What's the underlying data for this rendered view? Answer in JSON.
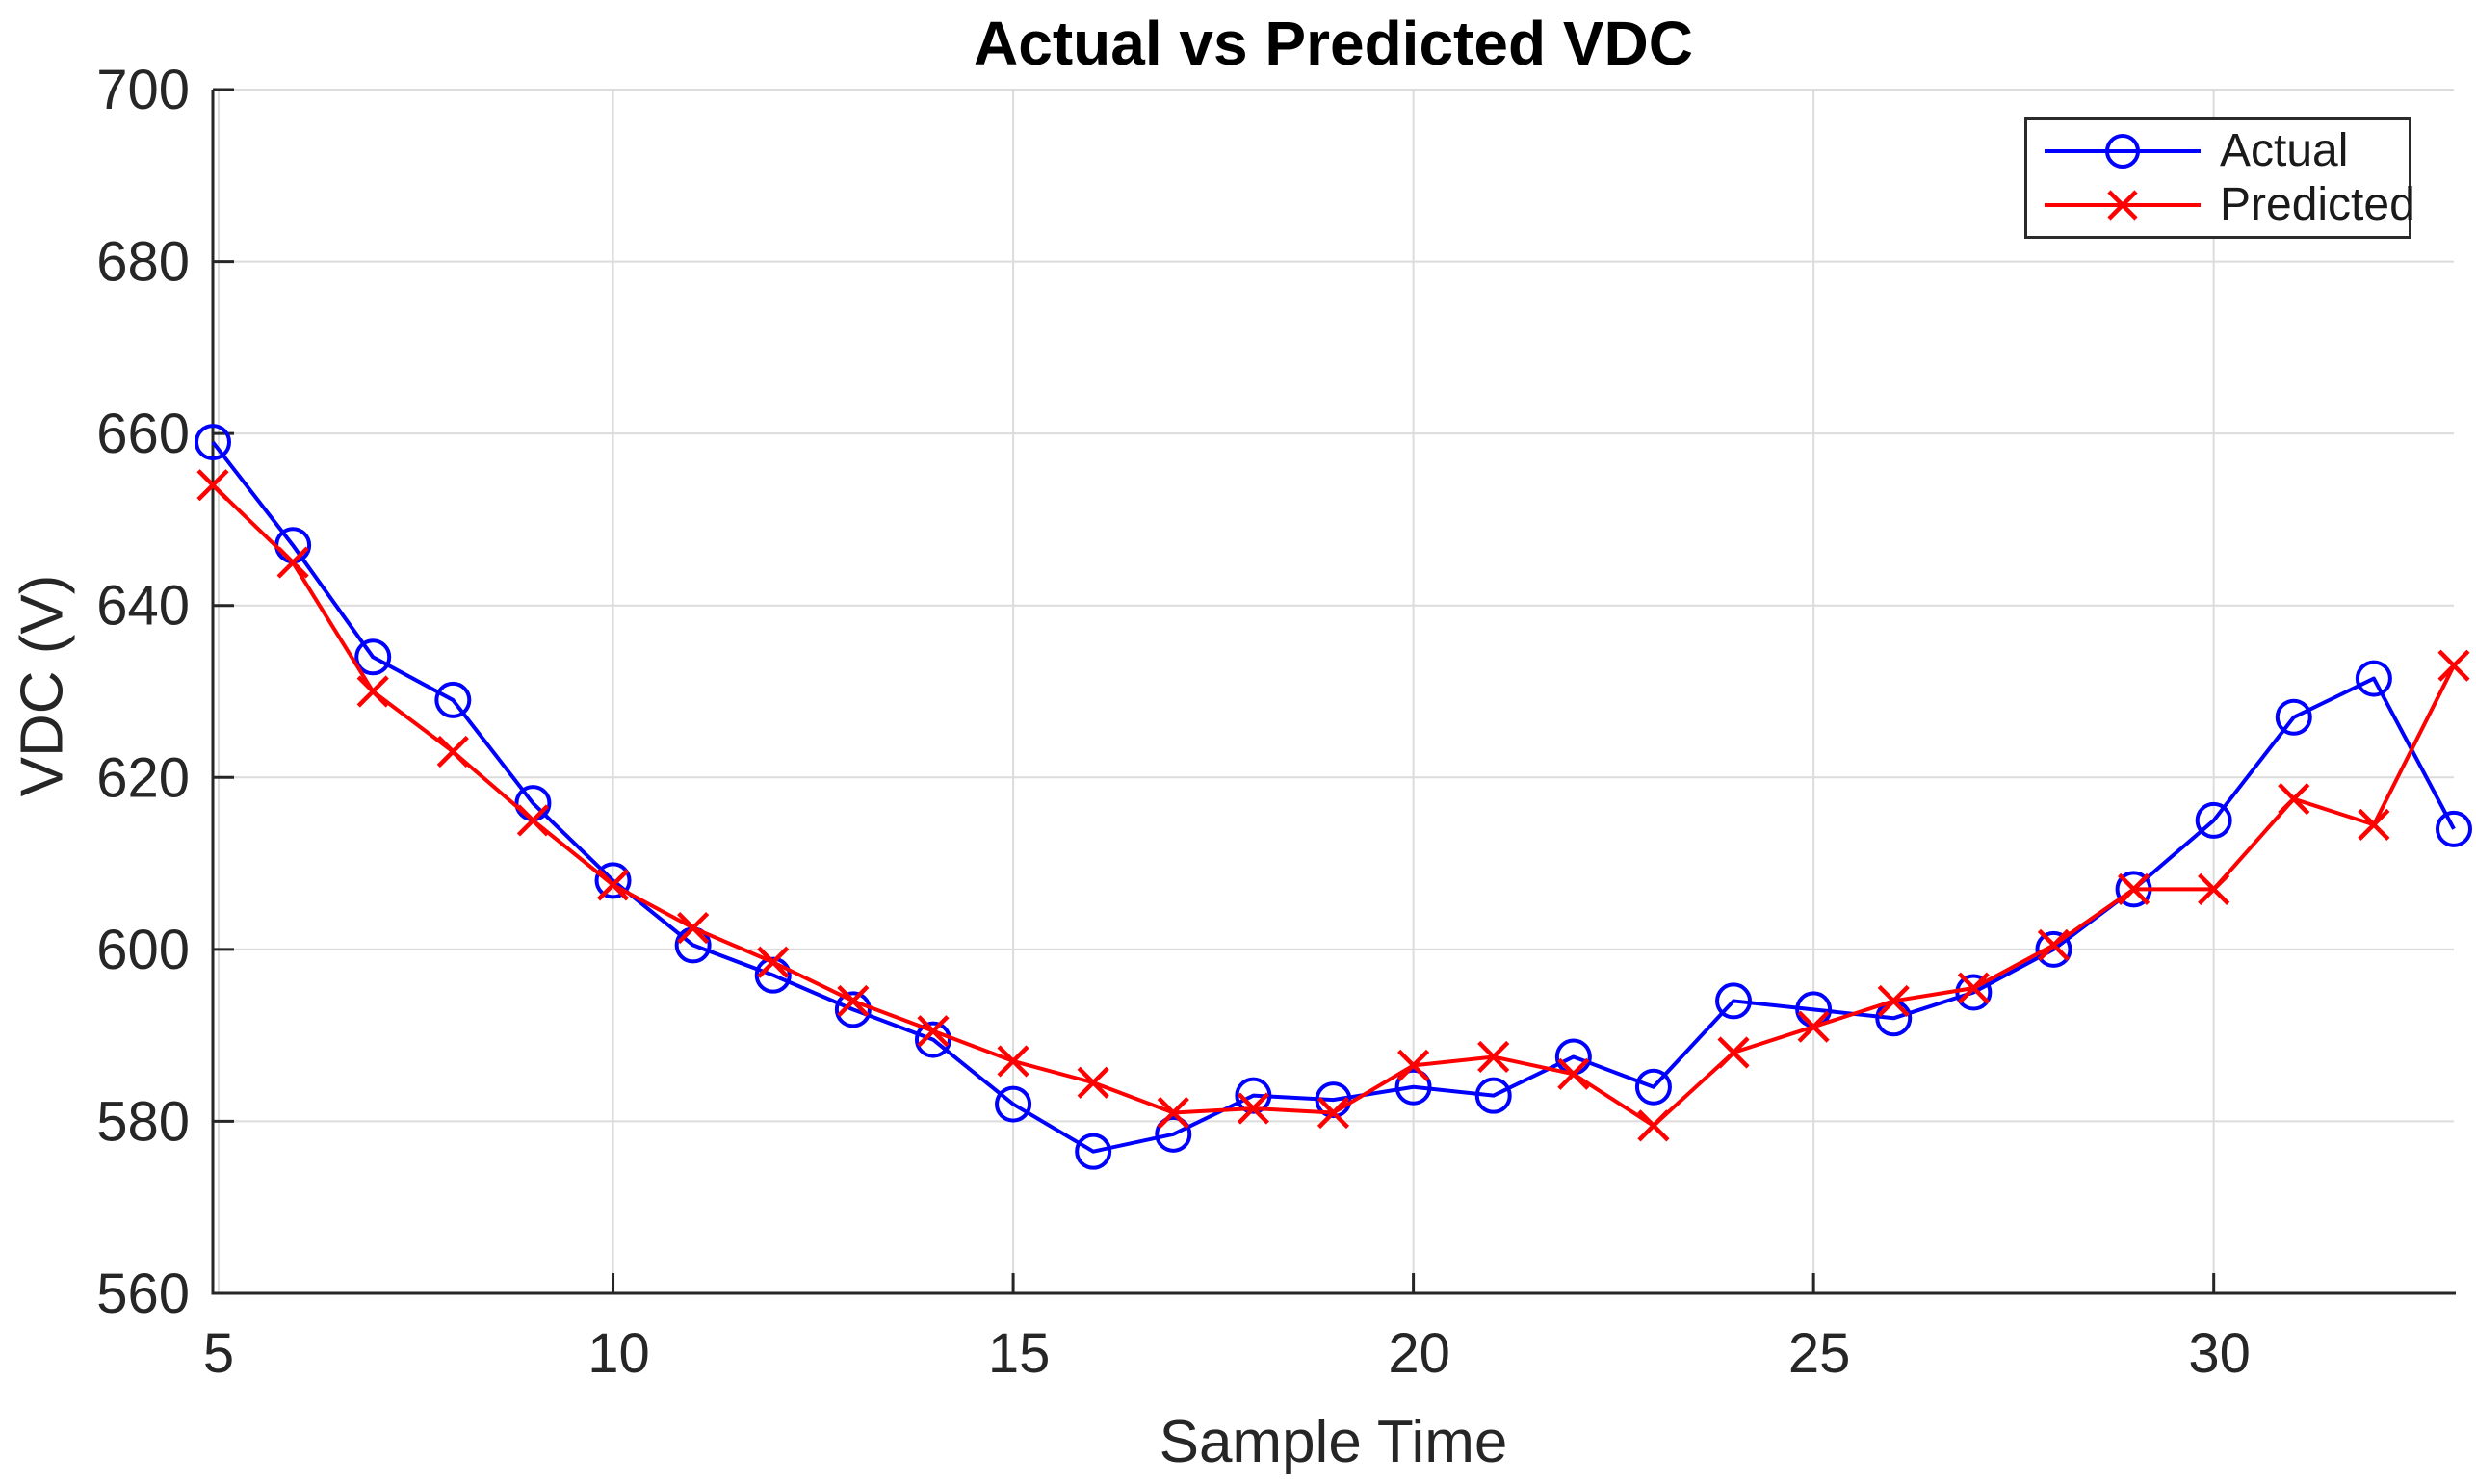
{
  "chart": {
    "title": "Actual vs Predicted VDC",
    "xlabel": "Sample Time",
    "ylabel": "VDC (V)"
  },
  "legend": {
    "items": [
      {
        "label": "Actual",
        "color": "#0000ff",
        "marker": "circle"
      },
      {
        "label": "Predicted",
        "color": "#ff0000",
        "marker": "x"
      }
    ]
  },
  "chart_data": {
    "type": "line",
    "title": "Actual vs Predicted VDC",
    "xlabel": "Sample Time",
    "ylabel": "VDC (V)",
    "x": [
      5,
      6,
      7,
      8,
      9,
      10,
      11,
      12,
      13,
      14,
      15,
      16,
      17,
      18,
      19,
      20,
      21,
      22,
      23,
      24,
      25,
      26,
      27,
      28,
      29,
      30,
      31,
      32,
      33
    ],
    "series": [
      {
        "name": "Actual",
        "color": "#0000ff",
        "marker": "circle",
        "values": [
          659,
          647,
          634,
          629,
          617,
          608,
          600.5,
          597,
          593,
          589.5,
          582,
          576.5,
          578.5,
          583,
          582.5,
          584,
          583,
          587.5,
          584,
          594,
          593,
          592,
          595,
          600,
          607,
          615,
          627,
          631.5,
          614
        ]
      },
      {
        "name": "Predicted",
        "color": "#ff0000",
        "marker": "x",
        "values": [
          654,
          645,
          630,
          623,
          615,
          607.5,
          602.5,
          598.5,
          594,
          590.5,
          587,
          584.5,
          581,
          581.5,
          581,
          586.5,
          587.5,
          585.5,
          579.5,
          588,
          591,
          594,
          595.5,
          600.5,
          607,
          607,
          617.5,
          614.5,
          633
        ]
      }
    ],
    "xlim": [
      5,
      33
    ],
    "ylim": [
      560,
      700
    ],
    "xticks": [
      5,
      10,
      15,
      20,
      25,
      30
    ],
    "yticks": [
      560,
      580,
      600,
      620,
      640,
      660,
      680,
      700
    ],
    "grid": true,
    "legend_position": "top-right",
    "axis_color": "#262626",
    "grid_color": "#dcdcdc",
    "tick_label_color": "#262626",
    "tick_label_size": 58
  }
}
